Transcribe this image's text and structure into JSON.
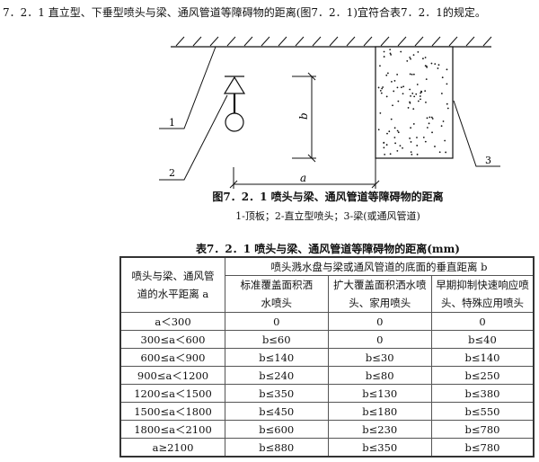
{
  "intro": "7．2．1 直立型、下垂型喷头与梁、通风管道等障碍物的距离(图7．2．1)宜符合表7．2．1的规定。",
  "figure": {
    "labels": {
      "ceiling": "1",
      "sprinkler": "2",
      "beam": "3",
      "a": "a",
      "b": "b"
    },
    "title": "图7．2．1 喷头与梁、通风管道等障碍物的距离",
    "legend": "1-顶板；2-直立型喷头；3-梁(或通风管道)"
  },
  "table": {
    "title": "表7．2．1 喷头与梁、通风管道等障碍物的距离(mm)",
    "row_header": "喷头与梁、通风管道的水平距离 a",
    "group_header": "喷头溅水盘与梁或通风管道的底面的垂直距离 b",
    "columns": [
      "标准覆盖面积洒水喷头",
      "扩大覆盖面积洒水喷头、家用喷头",
      "早期抑制快速响应喷头、特殊应用喷头"
    ],
    "rows": [
      [
        "a＜300",
        "0",
        "0",
        "0"
      ],
      [
        "300≤a＜600",
        "b≤60",
        "0",
        "b≤40"
      ],
      [
        "600≤a＜900",
        "b≤140",
        "b≤30",
        "b≤140"
      ],
      [
        "900≤a＜1200",
        "b≤240",
        "b≤80",
        "b≤250"
      ],
      [
        "1200≤a＜1500",
        "b≤350",
        "b≤130",
        "b≤380"
      ],
      [
        "1500≤a＜1800",
        "b≤450",
        "b≤180",
        "b≤550"
      ],
      [
        "1800≤a＜2100",
        "b≤600",
        "b≤230",
        "b≤780"
      ],
      [
        "a≥2100",
        "b≤880",
        "b≤350",
        "b≤780"
      ]
    ]
  }
}
